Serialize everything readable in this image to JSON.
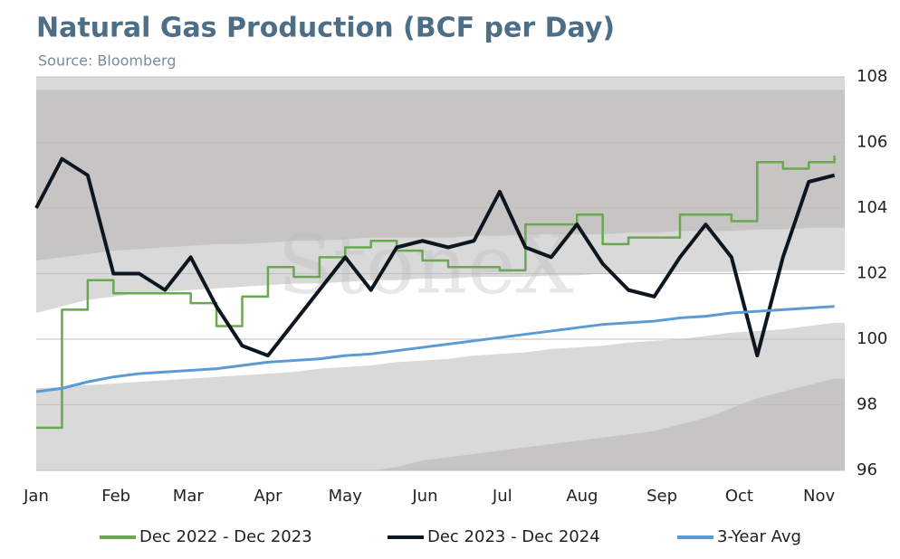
{
  "chart_data": {
    "type": "line",
    "title": "Natural Gas Production (BCF per Day)",
    "subtitle": "Source: Bloomberg",
    "watermark": "StoneX",
    "x": [
      0,
      10,
      20,
      30,
      40,
      50,
      60,
      70,
      80,
      90,
      100,
      110,
      120,
      130,
      140,
      150,
      160,
      170,
      180,
      190,
      200,
      210,
      220,
      230,
      240,
      250,
      260,
      270,
      280,
      290,
      300,
      310
    ],
    "xlim": [
      0,
      314
    ],
    "xticks": [
      {
        "value": 0,
        "label": "Jan"
      },
      {
        "value": 31,
        "label": "Feb"
      },
      {
        "value": 59,
        "label": "Mar"
      },
      {
        "value": 90,
        "label": "Apr"
      },
      {
        "value": 120,
        "label": "May"
      },
      {
        "value": 151,
        "label": "Jun"
      },
      {
        "value": 181,
        "label": "Jul"
      },
      {
        "value": 212,
        "label": "Aug"
      },
      {
        "value": 243,
        "label": "Sep"
      },
      {
        "value": 273,
        "label": "Oct"
      },
      {
        "value": 304,
        "label": "Nov"
      }
    ],
    "ylim": [
      96,
      108
    ],
    "yticks": [
      96,
      98,
      100,
      102,
      104,
      106,
      108
    ],
    "y_axis_side": "right",
    "legend": "bottom",
    "background": "#d9d9d9",
    "bands": [
      {
        "color": "#c6c5c4",
        "upper": 107.6,
        "lower": [
          102.4,
          102.5,
          102.6,
          102.7,
          102.75,
          102.8,
          102.85,
          102.9,
          102.9,
          102.95,
          103,
          103,
          103.05,
          103.1,
          103.1,
          103.1,
          103.1,
          103.15,
          103.15,
          103.2,
          103.2,
          103.2,
          103.2,
          103.25,
          103.25,
          103.3,
          103.3,
          103.3,
          103.35,
          103.35,
          103.4,
          103.4
        ]
      },
      {
        "color": "#ffffff",
        "upper": [
          100.8,
          101.0,
          101.2,
          101.3,
          101.4,
          101.45,
          101.5,
          101.55,
          101.6,
          101.65,
          101.7,
          101.7,
          101.75,
          101.8,
          101.8,
          101.85,
          101.85,
          101.9,
          101.9,
          101.9,
          101.95,
          101.95,
          102,
          102,
          102,
          102.05,
          102.05,
          102.05,
          102.1,
          102.1,
          102.1,
          102.1
        ],
        "lower": [
          98.5,
          98.55,
          98.6,
          98.65,
          98.7,
          98.75,
          98.8,
          98.85,
          98.9,
          98.95,
          99.0,
          99.1,
          99.15,
          99.2,
          99.3,
          99.35,
          99.4,
          99.5,
          99.55,
          99.6,
          99.7,
          99.75,
          99.8,
          99.9,
          99.95,
          100.0,
          100.1,
          100.2,
          100.25,
          100.3,
          100.4,
          100.5
        ]
      },
      {
        "color": "#c6c5c4",
        "upper": [
          null,
          null,
          null,
          null,
          null,
          null,
          null,
          null,
          null,
          null,
          null,
          null,
          null,
          96.0,
          96.1,
          96.3,
          96.4,
          96.5,
          96.6,
          96.7,
          96.8,
          96.9,
          97.0,
          97.1,
          97.2,
          97.4,
          97.6,
          97.9,
          98.2,
          98.4,
          98.6,
          98.8
        ],
        "lower": 96
      }
    ],
    "series": [
      {
        "name": "Dec 2022 - Dec 2023",
        "color": "#6aa84f",
        "width": 2.5,
        "step": true,
        "values": [
          97.3,
          100.9,
          101.8,
          101.4,
          101.4,
          101.4,
          101.1,
          100.4,
          101.3,
          102.2,
          101.9,
          102.5,
          102.8,
          103,
          102.7,
          102.4,
          102.2,
          102.2,
          102.1,
          103.5,
          103.5,
          103.8,
          102.9,
          103.1,
          103.1,
          103.8,
          103.8,
          103.6,
          105.4,
          105.2,
          105.4,
          105.6
        ]
      },
      {
        "name": "Dec 2023 - Dec 2024",
        "color": "#0d1620",
        "width": 4,
        "values": [
          104,
          105.5,
          105,
          102,
          102,
          101.5,
          102.5,
          101,
          99.8,
          99.5,
          100.5,
          101.5,
          102.5,
          101.5,
          102.8,
          103,
          102.8,
          103,
          104.5,
          102.8,
          102.5,
          103.5,
          102.3,
          101.5,
          101.3,
          102.5,
          103.5,
          102.5,
          99.5,
          102.5,
          104.8,
          105
        ]
      },
      {
        "name": "3-Year Avg",
        "color": "#5b9bd5",
        "width": 3,
        "values": [
          98.4,
          98.5,
          98.7,
          98.85,
          98.95,
          99.0,
          99.05,
          99.1,
          99.2,
          99.3,
          99.35,
          99.4,
          99.5,
          99.55,
          99.65,
          99.75,
          99.85,
          99.95,
          100.05,
          100.15,
          100.25,
          100.35,
          100.45,
          100.5,
          100.55,
          100.65,
          100.7,
          100.8,
          100.85,
          100.9,
          100.95,
          101.0
        ]
      }
    ]
  }
}
